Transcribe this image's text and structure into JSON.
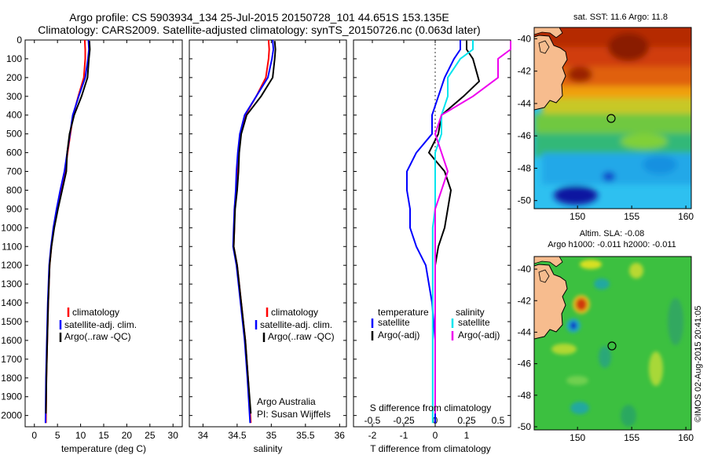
{
  "header": {
    "line1": "Argo profile: CS 5903934_134 25-Jul-2015 20150728_101 44.651S 153.135E",
    "line2": "Climatology: CARS2009. Satellite-adjusted climatology: synTS_20150726.nc (0.063d later)"
  },
  "colors": {
    "climatology": "#ff0000",
    "satellite": "#0000ff",
    "argo": "#000000",
    "sal_satellite": "#00e5ee",
    "sal_argo": "#ee00ee"
  },
  "credits": {
    "org": "Argo Australia",
    "pi": "PI: Susan Wijffels",
    "stamp": "©IMOS 02-Aug-2015 20:41:05"
  },
  "legend_profiles": [
    "climatology",
    "satellite-adj. clim.",
    "Argo(..raw -QC)"
  ],
  "legend_diff": {
    "temp_head": "temperature",
    "sal_head": "salinity",
    "sat": "satellite",
    "argo": "Argo(-adj)"
  },
  "maps": {
    "sst": {
      "title": "sat. SST: 11.6 Argo: 11.8",
      "xticks": [
        "150",
        "155",
        "160"
      ],
      "yticks": [
        "-40",
        "-42",
        "-44",
        "-46",
        "-48",
        "-50"
      ]
    },
    "sla": {
      "title1": "Altim. SLA: -0.08",
      "title2": "Argo h1000: -0.011 h2000: -0.011",
      "xticks": [
        "150",
        "155",
        "160"
      ],
      "yticks": [
        "-40",
        "-42",
        "-44",
        "-46",
        "-48",
        "-50"
      ]
    }
  },
  "chart_data": [
    {
      "type": "line",
      "xlabel": "temperature (deg C)",
      "xlim": [
        -2,
        32
      ],
      "ylim": [
        2060,
        0
      ],
      "xticks": [
        0,
        5,
        10,
        15,
        20,
        25,
        30
      ],
      "yticks": [
        0,
        100,
        200,
        300,
        400,
        500,
        600,
        700,
        800,
        900,
        1000,
        1100,
        1200,
        1300,
        1400,
        1500,
        1600,
        1700,
        1800,
        1900,
        2000
      ],
      "series": [
        {
          "name": "climatology",
          "color": "#ff0000",
          "x": [
            10.9,
            11.0,
            11.0,
            10.7,
            9.5,
            8.4,
            7.8,
            7.2,
            6.6,
            5.7,
            4.9,
            4.2,
            3.7,
            3.3,
            3.0,
            2.8,
            2.6,
            2.5
          ],
          "y": [
            0,
            50,
            100,
            200,
            300,
            400,
            500,
            600,
            700,
            800,
            900,
            1000,
            1100,
            1200,
            1400,
            1600,
            1800,
            2040
          ]
        },
        {
          "name": "satellite-adj. clim.",
          "color": "#0000ff",
          "x": [
            11.7,
            11.8,
            11.6,
            11.0,
            9.6,
            8.3,
            7.7,
            7.1,
            6.5,
            5.6,
            4.8,
            4.1,
            3.6,
            3.2,
            2.9,
            2.7,
            2.5,
            2.4
          ],
          "y": [
            0,
            50,
            100,
            200,
            300,
            400,
            500,
            600,
            700,
            800,
            900,
            1000,
            1100,
            1200,
            1400,
            1600,
            1800,
            2040
          ]
        },
        {
          "name": "Argo(..raw -QC)",
          "color": "#000000",
          "x": [
            11.9,
            12.0,
            11.8,
            11.5,
            10.2,
            8.6,
            7.6,
            7.1,
            6.9,
            6.0,
            5.1,
            4.3,
            3.7,
            3.3,
            3.0,
            2.8,
            2.6,
            2.5
          ],
          "y": [
            5,
            50,
            100,
            200,
            300,
            400,
            500,
            600,
            700,
            800,
            900,
            1000,
            1100,
            1200,
            1400,
            1600,
            1800,
            1990
          ]
        }
      ]
    },
    {
      "type": "line",
      "xlabel": "salinity",
      "xlim": [
        33.8,
        36.1
      ],
      "ylim": [
        2060,
        0
      ],
      "xticks": [
        34,
        34.5,
        35,
        35.5,
        36
      ],
      "series": [
        {
          "name": "climatology",
          "color": "#ff0000",
          "x": [
            34.96,
            34.97,
            34.96,
            34.92,
            34.78,
            34.62,
            34.55,
            34.52,
            34.5,
            34.49,
            34.46,
            34.46,
            34.45,
            34.5,
            34.56,
            34.62,
            34.66,
            34.7
          ],
          "y": [
            0,
            50,
            100,
            200,
            300,
            400,
            500,
            600,
            700,
            800,
            900,
            1000,
            1100,
            1200,
            1400,
            1600,
            1800,
            2040
          ]
        },
        {
          "name": "satellite-adj. clim.",
          "color": "#0000ff",
          "x": [
            35.02,
            35.03,
            35.01,
            34.95,
            34.78,
            34.61,
            34.54,
            34.51,
            34.49,
            34.48,
            34.46,
            34.45,
            34.44,
            34.49,
            34.55,
            34.61,
            34.65,
            34.69
          ],
          "y": [
            0,
            50,
            100,
            200,
            300,
            400,
            500,
            600,
            700,
            800,
            900,
            1000,
            1100,
            1200,
            1400,
            1600,
            1800,
            2040
          ]
        },
        {
          "name": "Argo(..raw -QC)",
          "color": "#000000",
          "x": [
            35.05,
            35.06,
            35.05,
            35.02,
            34.85,
            34.64,
            34.56,
            34.53,
            34.52,
            34.5,
            34.47,
            34.46,
            34.45,
            34.5,
            34.56,
            34.62,
            34.66,
            34.7
          ],
          "y": [
            5,
            50,
            100,
            200,
            300,
            400,
            500,
            600,
            700,
            800,
            900,
            1000,
            1100,
            1200,
            1400,
            1600,
            1800,
            1990
          ]
        }
      ]
    },
    {
      "type": "line",
      "xlabel": "T difference from climatology",
      "xlabel2": "S difference from climatology",
      "xlim": [
        -2.6,
        2.4
      ],
      "ylim": [
        2060,
        0
      ],
      "xticks": [
        -2,
        -1,
        0,
        1
      ],
      "xticks2": [
        -0.5,
        -0.25,
        0,
        0.25,
        0.5
      ],
      "series": [
        {
          "name": "temperature satellite",
          "color": "#0000ff",
          "x": [
            0.8,
            0.8,
            0.6,
            0.3,
            0.1,
            -0.1,
            -0.1,
            -0.6,
            -0.9,
            -0.9,
            -0.8,
            -0.8,
            -0.6,
            -0.3,
            -0.1,
            0,
            0,
            0
          ],
          "y": [
            0,
            50,
            100,
            200,
            300,
            400,
            500,
            600,
            700,
            800,
            900,
            1000,
            1100,
            1200,
            1400,
            1600,
            1800,
            2040
          ]
        },
        {
          "name": "temperature Argo(-adj)",
          "color": "#000000",
          "x": [
            1.0,
            1.0,
            1.2,
            1.4,
            0.9,
            0.2,
            0.1,
            -0.2,
            0.3,
            0.5,
            0.4,
            0.3,
            0.1,
            0,
            0,
            0,
            0,
            0
          ],
          "y": [
            5,
            50,
            100,
            220,
            300,
            400,
            500,
            600,
            700,
            800,
            900,
            1000,
            1100,
            1200,
            1400,
            1600,
            1800,
            1990
          ]
        },
        {
          "name": "salinity satellite",
          "color": "#00e5ee",
          "x": [
            0.3,
            0.3,
            0.2,
            0.1,
            0.1,
            0.05,
            0.05,
            0.0,
            0.0,
            0.0,
            0.0,
            -0.02,
            -0.02,
            -0.02,
            -0.02,
            -0.02,
            -0.02,
            -0.02
          ],
          "y": [
            0,
            50,
            100,
            200,
            300,
            400,
            500,
            600,
            700,
            800,
            900,
            1000,
            1100,
            1200,
            1400,
            1600,
            1800,
            2040
          ]
        },
        {
          "name": "salinity Argo(-adj)",
          "color": "#ee00ee",
          "x": [
            0.6,
            0.6,
            0.5,
            0.5,
            0.3,
            0.05,
            0.0,
            0.05,
            0.1,
            0.05,
            0.0,
            0.0,
            0.0,
            0.0,
            0.0,
            0.0,
            0.0,
            0.0
          ],
          "y": [
            5,
            50,
            100,
            200,
            300,
            400,
            500,
            600,
            700,
            800,
            900,
            1000,
            1100,
            1200,
            1400,
            1600,
            1800,
            1990
          ]
        }
      ]
    }
  ]
}
